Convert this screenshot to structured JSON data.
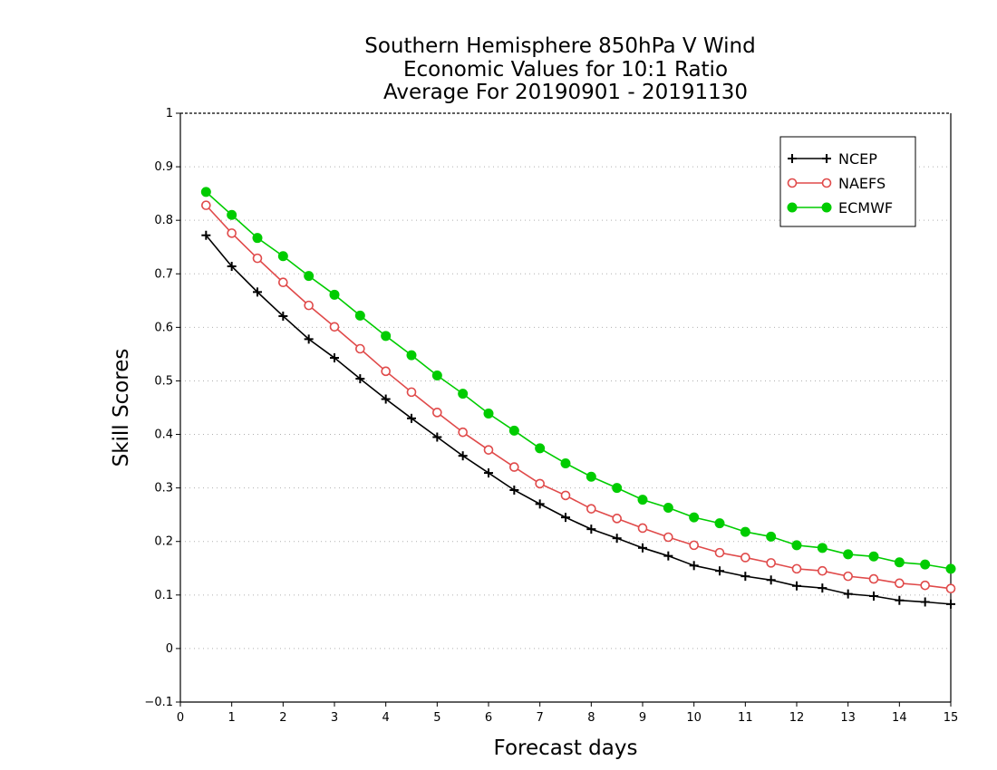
{
  "chart_data": {
    "type": "line",
    "title_lines": [
      "Southern Hemisphere 850hPa V Wind",
      "Economic Values for 10:1 Ratio",
      "Average For 20190901 - 20191130"
    ],
    "xlabel": "Forecast days",
    "ylabel": "Skill Scores",
    "xlim": [
      0,
      15
    ],
    "ylim": [
      -0.1,
      1
    ],
    "xticks": [
      "0",
      "1",
      "2",
      "3",
      "4",
      "5",
      "6",
      "7",
      "8",
      "9",
      "10",
      "11",
      "12",
      "13",
      "14",
      "15"
    ],
    "yticks": [
      "−0.1",
      "0",
      "0.1",
      "0.2",
      "0.3",
      "0.4",
      "0.5",
      "0.6",
      "0.7",
      "0.8",
      "0.9",
      "1"
    ],
    "grid": true,
    "legend_position": "top-right",
    "x": [
      0.5,
      1,
      1.5,
      2,
      2.5,
      3,
      3.5,
      4,
      4.5,
      5,
      5.5,
      6,
      6.5,
      7,
      7.5,
      8,
      8.5,
      9,
      9.5,
      10,
      10.5,
      11,
      11.5,
      12,
      12.5,
      13,
      13.5,
      14,
      14.5,
      15
    ],
    "series": [
      {
        "name": "NCEP",
        "color": "#000000",
        "marker": "plus",
        "values": [
          0.772,
          0.714,
          0.666,
          0.621,
          0.578,
          0.543,
          0.504,
          0.466,
          0.43,
          0.395,
          0.36,
          0.328,
          0.296,
          0.27,
          0.245,
          0.223,
          0.206,
          0.188,
          0.173,
          0.155,
          0.145,
          0.135,
          0.128,
          0.117,
          0.113,
          0.102,
          0.098,
          0.09,
          0.087,
          0.083
        ]
      },
      {
        "name": "NAEFS",
        "color": "#e04a4a",
        "marker": "open-circle",
        "values": [
          0.828,
          0.776,
          0.729,
          0.684,
          0.641,
          0.601,
          0.56,
          0.518,
          0.479,
          0.441,
          0.404,
          0.371,
          0.339,
          0.308,
          0.286,
          0.261,
          0.243,
          0.225,
          0.208,
          0.193,
          0.179,
          0.17,
          0.16,
          0.149,
          0.145,
          0.135,
          0.13,
          0.122,
          0.118,
          0.112
        ]
      },
      {
        "name": "ECMWF",
        "color": "#00cc00",
        "marker": "filled-circle",
        "values": [
          0.853,
          0.81,
          0.767,
          0.733,
          0.696,
          0.661,
          0.622,
          0.584,
          0.548,
          0.51,
          0.476,
          0.439,
          0.407,
          0.374,
          0.346,
          0.321,
          0.3,
          0.278,
          0.263,
          0.245,
          0.234,
          0.218,
          0.209,
          0.193,
          0.188,
          0.176,
          0.172,
          0.161,
          0.157,
          0.149
        ]
      }
    ]
  }
}
